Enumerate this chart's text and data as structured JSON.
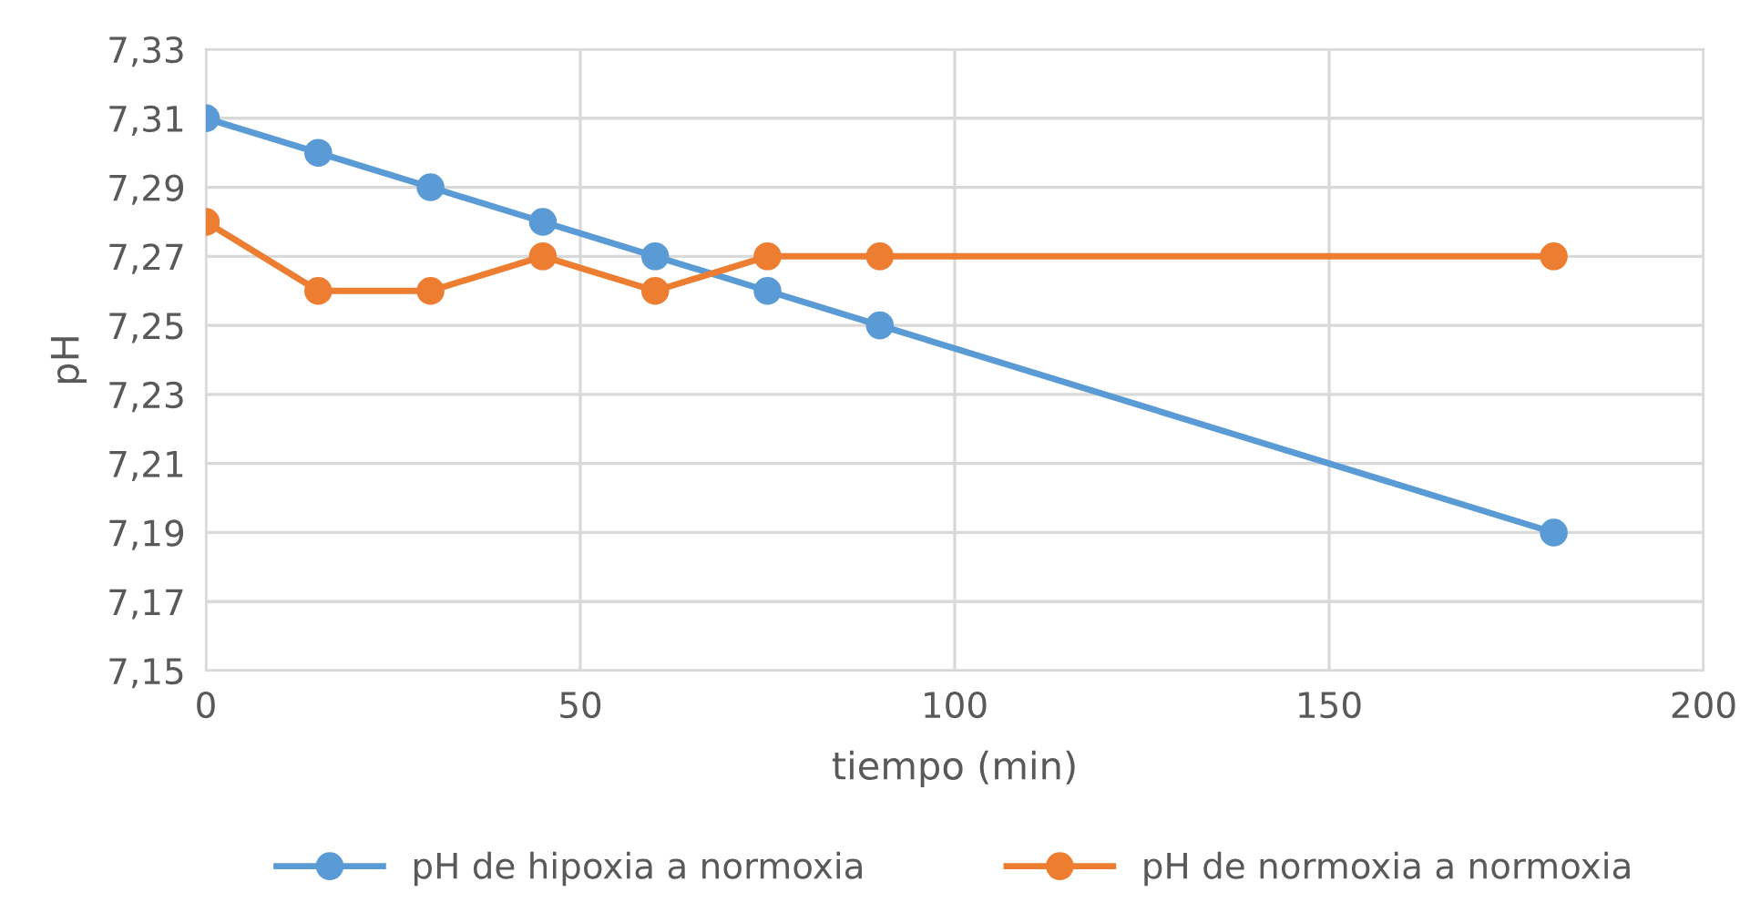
{
  "chart_data": {
    "type": "line",
    "xlabel": "tiempo (min)",
    "ylabel": "pH",
    "x": [
      0,
      15,
      30,
      45,
      60,
      75,
      90,
      180
    ],
    "series": [
      {
        "name": "pH de hipoxia a normoxia",
        "color": "#5b9bd5",
        "values": [
          7.31,
          7.3,
          7.29,
          7.28,
          7.27,
          7.26,
          7.25,
          7.19
        ]
      },
      {
        "name": "pH de normoxia a normoxia",
        "color": "#ed7d31",
        "values": [
          7.28,
          7.26,
          7.26,
          7.27,
          7.26,
          7.27,
          7.27,
          7.27
        ]
      }
    ],
    "xlim": [
      0,
      200
    ],
    "xticks": [
      0,
      50,
      100,
      150,
      200
    ],
    "ylim": [
      7.15,
      7.33
    ],
    "yticks": [
      {
        "value": 7.15,
        "label": "7,15"
      },
      {
        "value": 7.17,
        "label": "7,17"
      },
      {
        "value": 7.19,
        "label": "7,19"
      },
      {
        "value": 7.21,
        "label": "7,21"
      },
      {
        "value": 7.23,
        "label": "7,23"
      },
      {
        "value": 7.25,
        "label": "7,25"
      },
      {
        "value": 7.27,
        "label": "7,27"
      },
      {
        "value": 7.29,
        "label": "7,29"
      },
      {
        "value": 7.31,
        "label": "7,31"
      },
      {
        "value": 7.33,
        "label": "7,33"
      }
    ],
    "grid": true,
    "legend": "bottom",
    "marker": "circle",
    "line_style": "solid"
  }
}
